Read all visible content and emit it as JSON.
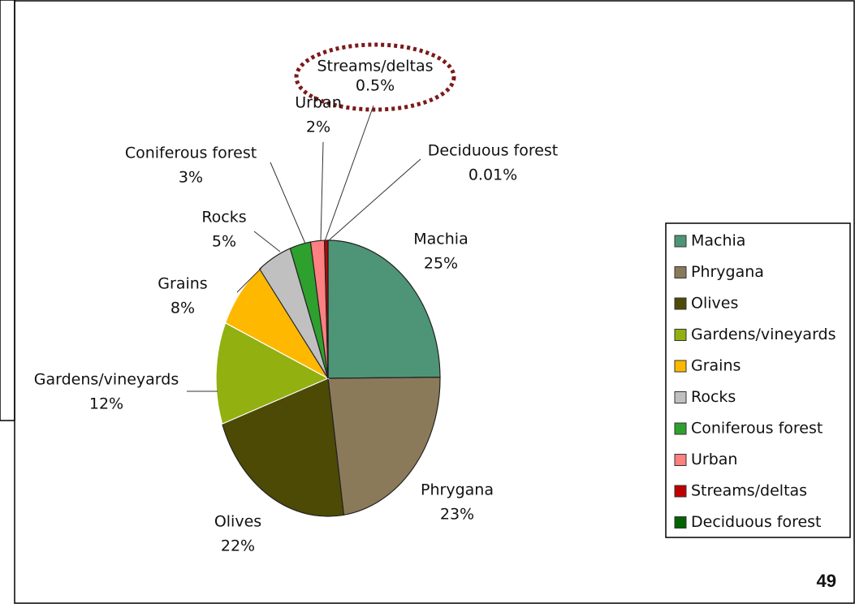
{
  "chart_data": {
    "type": "pie",
    "categories": [
      "Machia",
      "Phrygana",
      "Olives",
      "Gardens/vineyards",
      "Grains",
      "Rocks",
      "Coniferous forest",
      "Urban",
      "Streams/deltas",
      "Deciduous forest"
    ],
    "values": [
      25,
      23,
      22,
      12,
      8,
      5,
      3,
      2,
      0.5,
      0.01
    ],
    "value_labels": [
      "25%",
      "23%",
      "22%",
      "12%",
      "8%",
      "5%",
      "3%",
      "2%",
      "0.5%",
      "0.01%"
    ],
    "colors": [
      "#4e9577",
      "#8b7a5a",
      "#4d4a05",
      "#92b010",
      "#ffb800",
      "#c0c0c0",
      "#2ea02e",
      "#ff8080",
      "#c00000",
      "#006400"
    ],
    "legend": "right"
  },
  "page_number": "49"
}
